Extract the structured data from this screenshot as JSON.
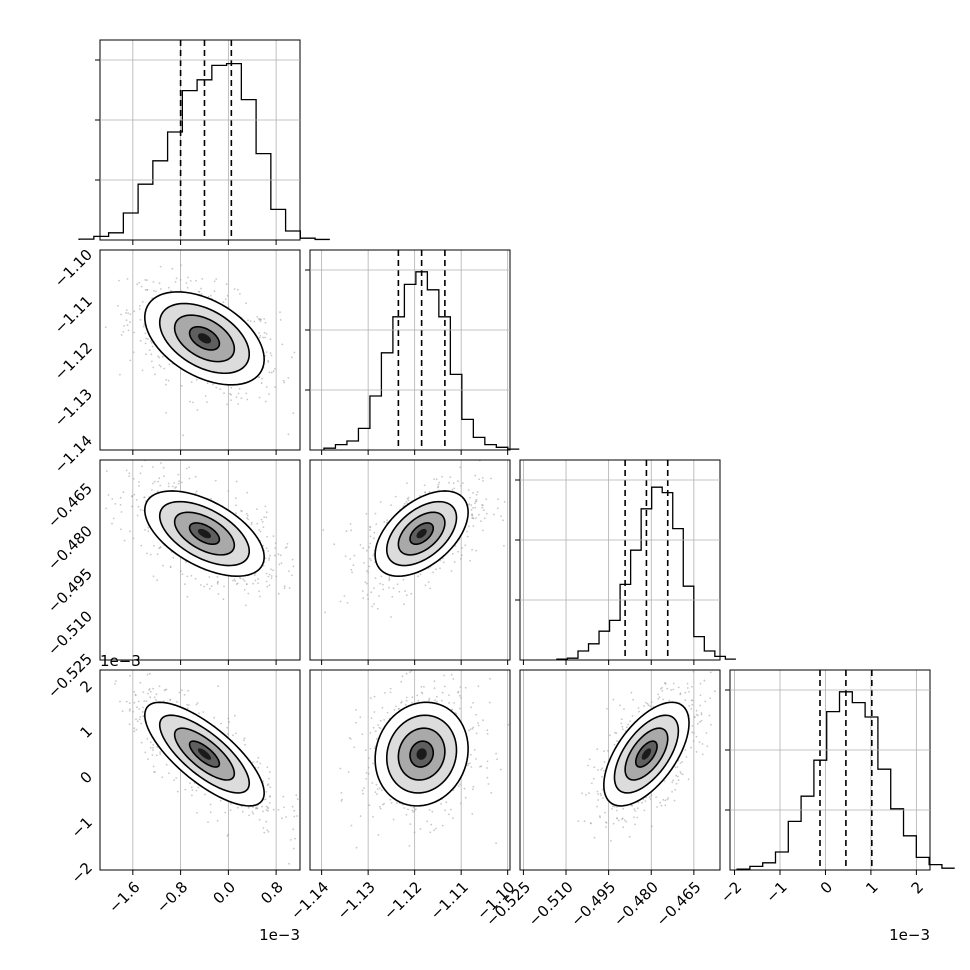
{
  "chart_data": {
    "type": "corner",
    "grid": true,
    "colors": {
      "line": "#000000",
      "grid": "#b0b0b0",
      "points": "#9a9a9a"
    },
    "parameters": [
      {
        "median": -0.0004,
        "q16": -0.0008,
        "q84": 5e-05,
        "sigma": 0.0005,
        "scale_label": "1e−3",
        "xlim": [
          -0.00215,
          0.0012
        ]
      },
      {
        "median": -1.1185,
        "q16": -1.1235,
        "q84": -1.1135,
        "sigma": 0.005,
        "xlim": [
          -1.1425,
          -1.0995
        ]
      },
      {
        "median": -0.4817,
        "q16": -0.4892,
        "q84": -0.4742,
        "sigma": 0.0075,
        "xlim": [
          -0.5262,
          -0.4558
        ]
      },
      {
        "median": 0.00045,
        "q16": -0.00012,
        "q84": 0.00102,
        "sigma": 0.00057,
        "scale_label": "1e−3",
        "xlim": [
          -0.0021,
          0.0023
        ]
      }
    ],
    "histograms": [
      [
        0.005,
        0.02,
        0.04,
        0.15,
        0.31,
        0.44,
        0.6,
        0.83,
        0.89,
        0.97,
        0.98,
        0.78,
        0.48,
        0.17,
        0.05,
        0.01,
        0.003
      ],
      [
        0.01,
        0.03,
        0.05,
        0.12,
        0.3,
        0.54,
        0.74,
        0.92,
        0.99,
        0.89,
        0.74,
        0.42,
        0.17,
        0.07,
        0.03,
        0.015,
        0.005
      ],
      [
        0.005,
        0.01,
        0.05,
        0.09,
        0.16,
        0.22,
        0.42,
        0.61,
        0.84,
        0.96,
        0.93,
        0.73,
        0.41,
        0.13,
        0.05,
        0.02,
        0.005
      ],
      [
        0.005,
        0.02,
        0.04,
        0.1,
        0.27,
        0.41,
        0.61,
        0.88,
        0.99,
        0.93,
        0.85,
        0.56,
        0.34,
        0.19,
        0.07,
        0.03,
        0.01
      ]
    ],
    "pairs": [
      {
        "x": 0,
        "y": 1,
        "correlation": -0.45
      },
      {
        "x": 0,
        "y": 2,
        "correlation": -0.55
      },
      {
        "x": 1,
        "y": 2,
        "correlation": 0.5
      },
      {
        "x": 0,
        "y": 3,
        "correlation": -0.75
      },
      {
        "x": 1,
        "y": 3,
        "correlation": 0.1
      },
      {
        "x": 2,
        "y": 3,
        "correlation": 0.6
      }
    ],
    "ticks": [
      {
        "values": [
          -0.0016,
          -0.0008,
          0.0,
          0.0008
        ],
        "labels": [
          "−1.6",
          "−0.8",
          "0.0",
          "0.8"
        ]
      },
      {
        "values": [
          -1.14,
          -1.13,
          -1.12,
          -1.11,
          -1.1
        ],
        "labels": [
          "−1.14",
          "−1.13",
          "−1.12",
          "−1.11",
          "−1.10"
        ]
      },
      {
        "values": [
          -0.525,
          -0.51,
          -0.495,
          -0.48,
          -0.465
        ],
        "labels": [
          "−0.525",
          "−0.510",
          "−0.495",
          "−0.480",
          "−0.465"
        ]
      },
      {
        "values": [
          -0.002,
          -0.001,
          0.0,
          0.001,
          0.002
        ],
        "labels": [
          "−2",
          "−1",
          "0",
          "1",
          "2"
        ]
      }
    ]
  }
}
